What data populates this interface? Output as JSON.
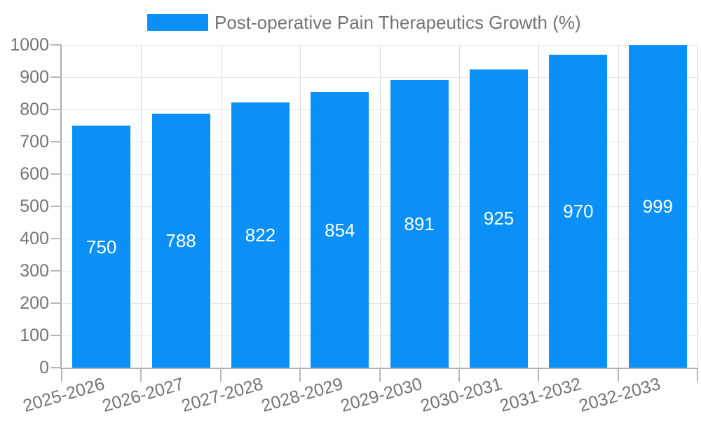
{
  "legend": {
    "label": "Post-operative Pain Therapeutics Growth (%)"
  },
  "colors": {
    "bar": "#0a90f6",
    "grid_horizontal": "#e7e7e7",
    "grid_vertical": "#dcdcdc",
    "axis": "#adadad",
    "tick": "#b8b8b8",
    "tick_label_text": "#747474",
    "legend_text": "#747474",
    "value_label_text": "#ffffff",
    "background": "#ffffff"
  },
  "chart_data": {
    "type": "bar",
    "title": "Post-operative Pain Therapeutics Growth (%)",
    "categories": [
      "2025-2026",
      "2026-2027",
      "2027-2028",
      "2028-2029",
      "2029-2030",
      "2030-2031",
      "2031-2032",
      "2032-2033"
    ],
    "values": [
      750,
      788,
      822,
      854,
      891,
      925,
      970,
      999
    ],
    "value_labels_position": "inside-center",
    "xlabel": "",
    "ylabel": "",
    "ylim": [
      0,
      1000
    ],
    "ytick_step": 100,
    "yticks": [
      0,
      100,
      200,
      300,
      400,
      500,
      600,
      700,
      800,
      900,
      1000
    ],
    "grid": true,
    "legend_position": "top",
    "x_label_rotation_deg": -16
  }
}
